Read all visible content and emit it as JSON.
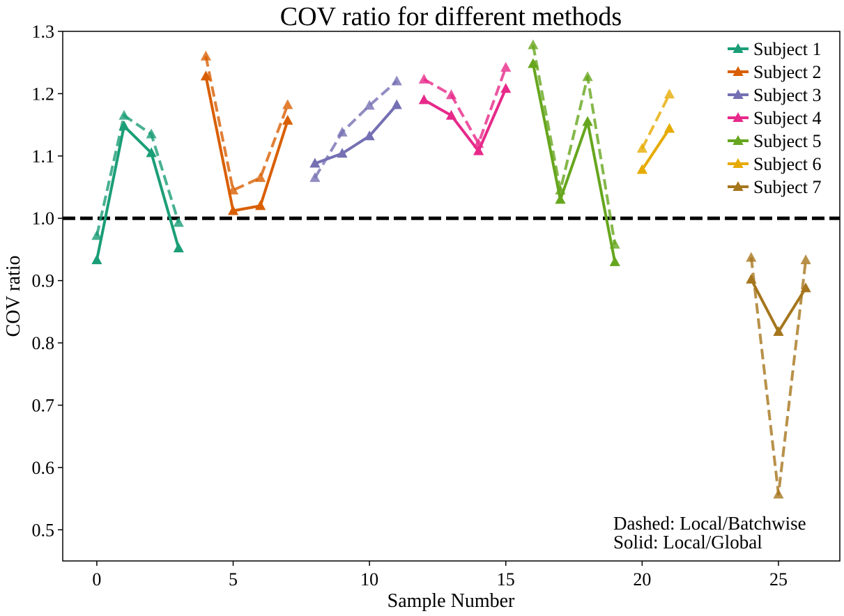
{
  "chart_data": {
    "type": "line",
    "title": "COV ratio for different methods",
    "xlabel": "Sample Number",
    "ylabel": "COV ratio",
    "xlim": [
      -1.25,
      27.25
    ],
    "ylim": [
      0.45,
      1.3
    ],
    "xticks": [
      0,
      5,
      10,
      15,
      20,
      25
    ],
    "yticks": [
      0.5,
      0.6,
      0.7,
      0.8,
      0.9,
      1.0,
      1.1,
      1.2,
      1.3
    ],
    "ytick_labels": [
      "0.5",
      "0.6",
      "0.7",
      "0.8",
      "0.9",
      "1.0",
      "1.1",
      "1.2",
      "1.3"
    ],
    "reference_line": {
      "y": 1.0,
      "style": "dashed",
      "color": "#000000"
    },
    "legend_position": "top-right",
    "annotation_lines": [
      "Dashed: Local/Batchwise",
      "Solid: Local/Global"
    ],
    "series": [
      {
        "name": "Subject 1",
        "color": "#1b9e77",
        "x": [
          0,
          1,
          2,
          3
        ],
        "solid": [
          0.933,
          1.148,
          1.105,
          0.952
        ],
        "dashed": [
          0.972,
          1.165,
          1.135,
          0.993
        ]
      },
      {
        "name": "Subject 2",
        "color": "#d95f02",
        "x": [
          4,
          5,
          6,
          7
        ],
        "solid": [
          1.228,
          1.012,
          1.02,
          1.157
        ],
        "dashed": [
          1.26,
          1.045,
          1.065,
          1.182
        ]
      },
      {
        "name": "Subject 3",
        "color": "#7570b3",
        "x": [
          8,
          9,
          10,
          11
        ],
        "solid": [
          1.088,
          1.104,
          1.132,
          1.182
        ],
        "dashed": [
          1.065,
          1.138,
          1.181,
          1.22
        ]
      },
      {
        "name": "Subject 4",
        "color": "#e7298a",
        "x": [
          12,
          13,
          14,
          15
        ],
        "solid": [
          1.19,
          1.165,
          1.108,
          1.208
        ],
        "dashed": [
          1.223,
          1.198,
          1.12,
          1.242
        ]
      },
      {
        "name": "Subject 5",
        "color": "#66a61e",
        "x": [
          16,
          17,
          18,
          19
        ],
        "solid": [
          1.248,
          1.03,
          1.155,
          0.93
        ],
        "dashed": [
          1.278,
          1.045,
          1.227,
          0.958
        ]
      },
      {
        "name": "Subject 6",
        "color": "#e6ab02",
        "x": [
          20,
          21
        ],
        "solid": [
          1.078,
          1.144
        ],
        "dashed": [
          1.112,
          1.199
        ]
      },
      {
        "name": "Subject 7",
        "color": "#a6761d",
        "x": [
          24,
          25,
          26
        ],
        "solid": [
          0.902,
          0.818,
          0.888
        ],
        "dashed": [
          0.937,
          0.557,
          0.933
        ]
      }
    ]
  }
}
